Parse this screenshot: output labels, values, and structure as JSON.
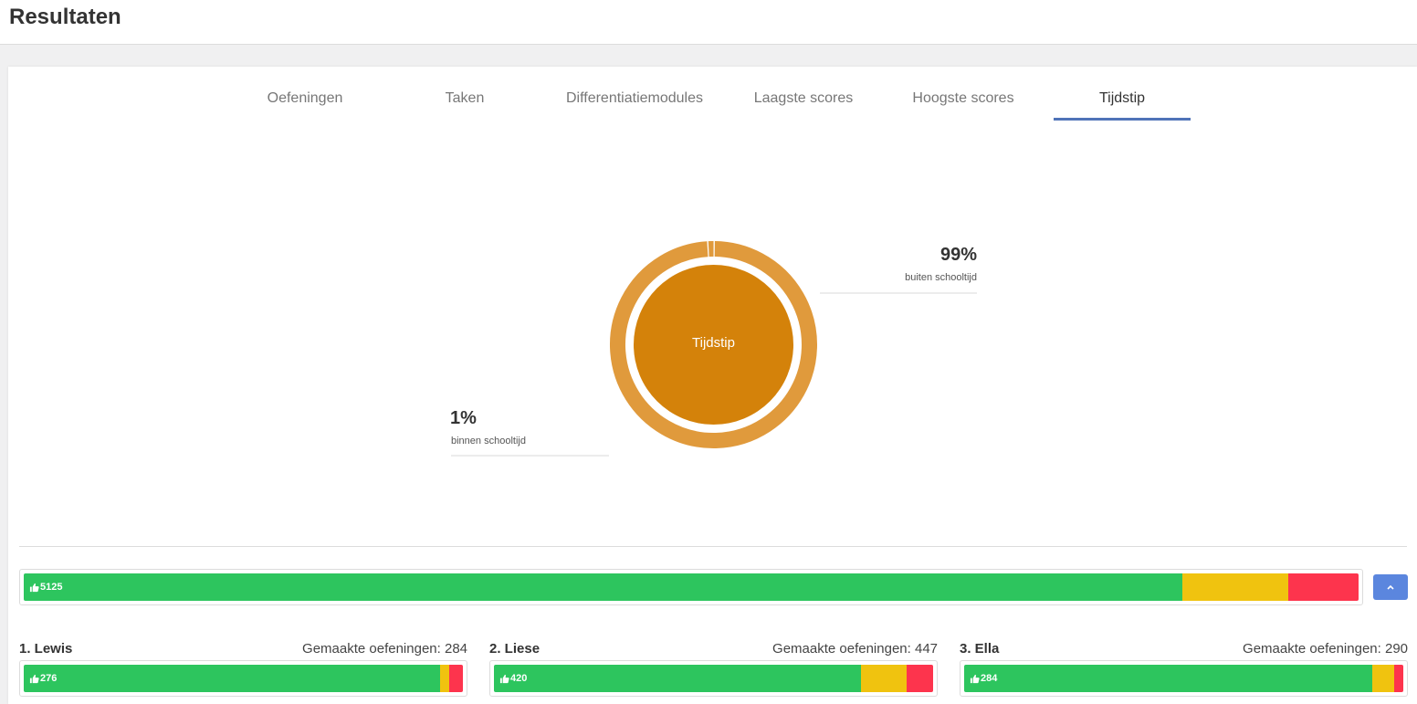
{
  "header": {
    "title": "Resultaten"
  },
  "tabs": [
    {
      "label": "Oefeningen",
      "active": false
    },
    {
      "label": "Taken",
      "active": false
    },
    {
      "label": "Differentiatiemodules",
      "active": false
    },
    {
      "label": "Laagste scores",
      "active": false
    },
    {
      "label": "Hoogste scores",
      "active": false
    },
    {
      "label": "Tijdstip",
      "active": true
    }
  ],
  "chart_data": {
    "type": "pie",
    "center_label": "Tijdstip",
    "slices": [
      {
        "label": "buiten schooltijd",
        "value": 99,
        "display": "99%",
        "color": "#e09a3c"
      },
      {
        "label": "binnen schooltijd",
        "value": 1,
        "display": "1%",
        "color": "#e09a3c"
      }
    ],
    "inner_color": "#d4820a"
  },
  "summary_bar": {
    "count": "5125",
    "segments": [
      {
        "status": "good",
        "fraction": 0.868,
        "color": "#2dc55e"
      },
      {
        "status": "medium",
        "fraction": 0.079,
        "color": "#f0c30f"
      },
      {
        "status": "bad",
        "fraction": 0.053,
        "color": "#fd344d"
      }
    ]
  },
  "collapse_button": {
    "icon": "chevron-up-icon"
  },
  "students": [
    {
      "name": "1. Lewis",
      "made_label": "Gemaakte oefeningen: 284",
      "count": "276",
      "segments": [
        0.947,
        0.021,
        0.032
      ]
    },
    {
      "name": "2. Liese",
      "made_label": "Gemaakte oefeningen: 447",
      "count": "420",
      "segments": [
        0.836,
        0.103,
        0.061
      ]
    },
    {
      "name": "3. Ella",
      "made_label": "Gemaakte oefeningen: 290",
      "count": "284",
      "segments": [
        0.929,
        0.051,
        0.02
      ]
    }
  ]
}
